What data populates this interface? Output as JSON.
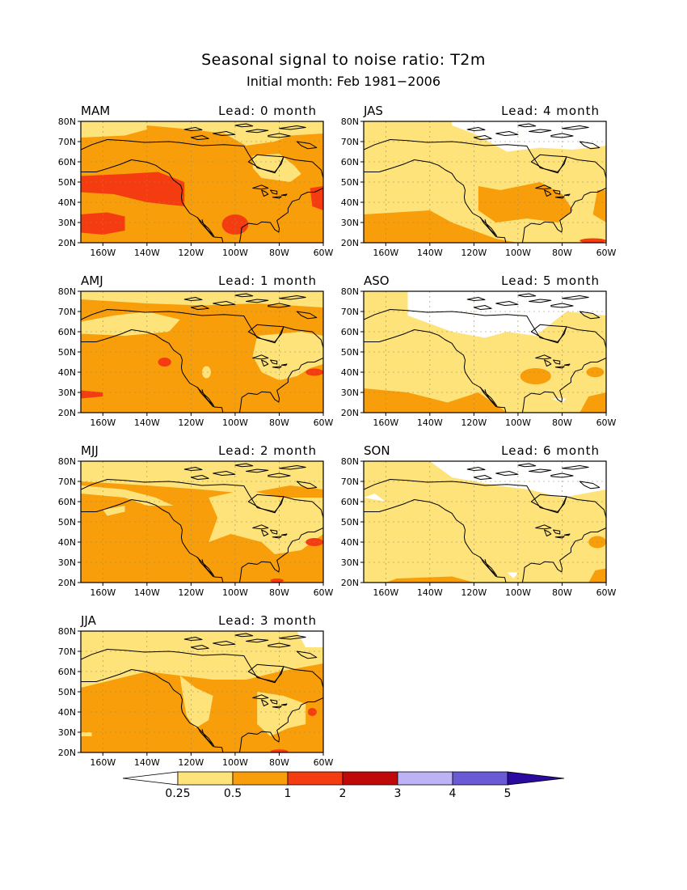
{
  "title": "Seasonal signal to noise ratio: T2m",
  "subtitle": "Initial month: Feb 1981−2006",
  "lead_prefix": "Lead:",
  "lead_unit": "month",
  "lat_ticks": [
    "80N",
    "70N",
    "60N",
    "50N",
    "40N",
    "30N",
    "20N"
  ],
  "lon_ticks": [
    "160W",
    "140W",
    "120W",
    "100W",
    "80W",
    "60W"
  ],
  "colors": {
    "below_025": "#ffffff",
    "c025_05": "#fde37a",
    "c05_1": "#f89e0b",
    "c1_2": "#f53c10",
    "c2_3": "#c00a0a",
    "c3_4": "#bcb2f5",
    "c4_5": "#6a5ad6",
    "above_5": "#2a0aa0",
    "coast": "#000000"
  },
  "colorbar": {
    "labels": [
      "0.25",
      "0.5",
      "1",
      "2",
      "3",
      "4",
      "5"
    ]
  },
  "panels": [
    {
      "season": "MAM",
      "lead": "0",
      "dominant": "0.5-1",
      "features": [
        "1-2 over NE Pacific",
        "1-2 off Baja",
        "1-2 over S Texas",
        "1-2 off US East coast",
        "0.25-0.5 over high Arctic and Hudson Bay"
      ]
    },
    {
      "season": "AMJ",
      "lead": "1",
      "dominant": "0.5-1",
      "features": [
        "0.25-0.5 over Great Lakes and East",
        "1-2 small spots"
      ]
    },
    {
      "season": "MJJ",
      "lead": "2",
      "dominant": "0.5-1",
      "features": [
        "0.25-0.5 over central Canada and East",
        "1-2 small spots SE"
      ]
    },
    {
      "season": "JJA",
      "lead": "3",
      "dominant": "0.5-1",
      "features": [
        "0.25-0.5 over Canada and Alaska",
        "<0.25 far NE"
      ]
    },
    {
      "season": "JAS",
      "lead": "4",
      "dominant": "0.25-0.5",
      "features": [
        "<0.25 over Arctic",
        "0.5-1 over central US"
      ]
    },
    {
      "season": "ASO",
      "lead": "5",
      "dominant": "0.25-0.5",
      "features": [
        "<0.25 over Arctic and Canada",
        "0.5-1 southwest"
      ]
    },
    {
      "season": "SON",
      "lead": "6",
      "dominant": "0.25-0.5",
      "features": [
        "<0.25 over Arctic",
        "0.5-1 small areas"
      ]
    }
  ]
}
